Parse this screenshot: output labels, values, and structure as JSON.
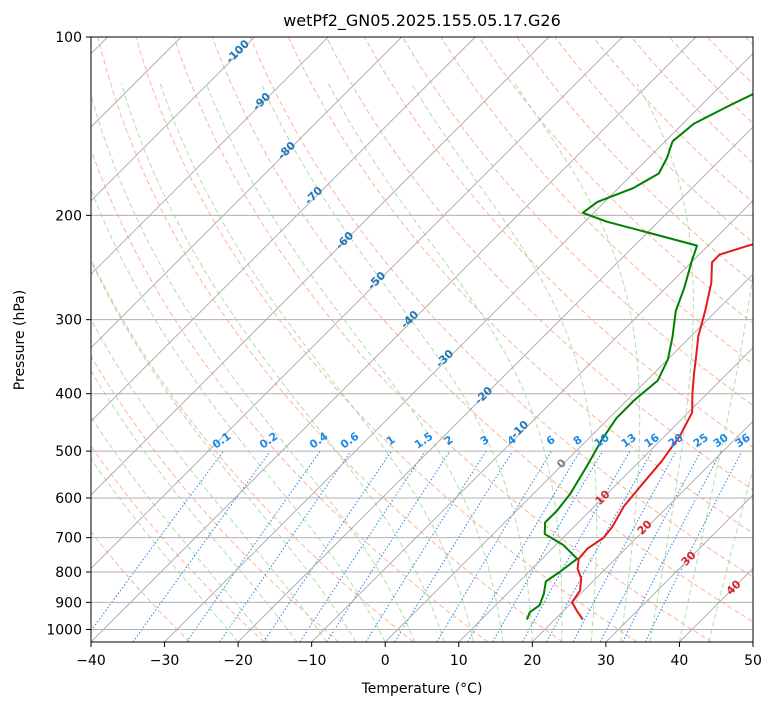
{
  "chart_data": {
    "type": "line",
    "title": "wetPf2_GN05.2025.155.05.17.G26",
    "xlabel": "Temperature (°C)",
    "ylabel": "Pressure (hPa)",
    "xlim": [
      -40,
      50
    ],
    "ylim": [
      1050,
      100
    ],
    "yscale": "log",
    "grid": true,
    "x_ticks": [
      -40,
      -30,
      -20,
      -10,
      0,
      10,
      20,
      30,
      40,
      50
    ],
    "y_ticks": [
      100,
      200,
      300,
      400,
      500,
      600,
      700,
      800,
      900,
      1000
    ],
    "series": [
      {
        "kind": "temperature",
        "color": "#e41a1c",
        "points": [
          {
            "p": 962,
            "t": 23.8
          },
          {
            "p": 930,
            "t": 21.8
          },
          {
            "p": 900,
            "t": 20.0
          },
          {
            "p": 860,
            "t": 19.5
          },
          {
            "p": 820,
            "t": 18.0
          },
          {
            "p": 790,
            "t": 16.2
          },
          {
            "p": 760,
            "t": 15.0
          },
          {
            "p": 730,
            "t": 14.8
          },
          {
            "p": 700,
            "t": 15.5
          },
          {
            "p": 670,
            "t": 15.2
          },
          {
            "p": 620,
            "t": 14.0
          },
          {
            "p": 570,
            "t": 13.5
          },
          {
            "p": 520,
            "t": 13.0
          },
          {
            "p": 470,
            "t": 12.0
          },
          {
            "p": 430,
            "t": 10.5
          },
          {
            "p": 400,
            "t": 8.0
          },
          {
            "p": 370,
            "t": 5.5
          },
          {
            "p": 350,
            "t": 3.8
          },
          {
            "p": 320,
            "t": 1.0
          },
          {
            "p": 290,
            "t": -1.5
          },
          {
            "p": 260,
            "t": -4.5
          },
          {
            "p": 240,
            "t": -7.2
          },
          {
            "p": 233,
            "t": -7.2
          },
          {
            "p": 225,
            "t": -4.5
          },
          {
            "p": 215,
            "t": -0.5
          },
          {
            "p": 205,
            "t": 3.5
          },
          {
            "p": 195,
            "t": 7.0
          },
          {
            "p": 180,
            "t": 9.5
          },
          {
            "p": 165,
            "t": 11.5
          },
          {
            "p": 150,
            "t": 14.5
          },
          {
            "p": 135,
            "t": 17.0
          },
          {
            "p": 120,
            "t": 19.0
          },
          {
            "p": 110,
            "t": 21.5
          },
          {
            "p": 100,
            "t": 25.0
          }
        ]
      },
      {
        "kind": "dewpoint",
        "color": "#008000",
        "points": [
          {
            "p": 962,
            "t": 16.2
          },
          {
            "p": 935,
            "t": 15.6
          },
          {
            "p": 910,
            "t": 16.0
          },
          {
            "p": 870,
            "t": 15.0
          },
          {
            "p": 830,
            "t": 13.6
          },
          {
            "p": 800,
            "t": 14.2
          },
          {
            "p": 760,
            "t": 14.8
          },
          {
            "p": 720,
            "t": 11.0
          },
          {
            "p": 690,
            "t": 7.0
          },
          {
            "p": 660,
            "t": 5.5
          },
          {
            "p": 630,
            "t": 5.5
          },
          {
            "p": 590,
            "t": 5.0
          },
          {
            "p": 530,
            "t": 3.5
          },
          {
            "p": 480,
            "t": 2.0
          },
          {
            "p": 440,
            "t": 1.0
          },
          {
            "p": 410,
            "t": 1.0
          },
          {
            "p": 380,
            "t": 1.5
          },
          {
            "p": 350,
            "t": 0.0
          },
          {
            "p": 320,
            "t": -2.5
          },
          {
            "p": 290,
            "t": -5.5
          },
          {
            "p": 265,
            "t": -7.5
          },
          {
            "p": 240,
            "t": -10.0
          },
          {
            "p": 225,
            "t": -11.5
          },
          {
            "p": 215,
            "t": -19.0
          },
          {
            "p": 205,
            "t": -27.0
          },
          {
            "p": 198,
            "t": -31.5
          },
          {
            "p": 190,
            "t": -31.0
          },
          {
            "p": 180,
            "t": -28.0
          },
          {
            "p": 170,
            "t": -26.5
          },
          {
            "p": 160,
            "t": -27.5
          },
          {
            "p": 150,
            "t": -29.0
          },
          {
            "p": 140,
            "t": -28.5
          },
          {
            "p": 130,
            "t": -26.0
          },
          {
            "p": 120,
            "t": -23.0
          },
          {
            "p": 110,
            "t": -20.0
          },
          {
            "p": 100,
            "t": -17.5
          }
        ]
      }
    ],
    "isotherm_labels": [
      "-100",
      "-90",
      "-80",
      "-70",
      "-60",
      "-50",
      "-40",
      "-30",
      "-20",
      "-10"
    ],
    "isotherm_label_color": "#1f77b4",
    "mixing_ratio_labels": [
      "0.1",
      "0.2",
      "0.4",
      "0.6",
      "1",
      "1.5",
      "2",
      "3",
      "4",
      "6",
      "8",
      "10",
      "13",
      "16",
      "20",
      "25",
      "30",
      "36"
    ],
    "mixing_ratio_values": [
      0.1,
      0.2,
      0.4,
      0.6,
      1,
      1.5,
      2,
      3,
      4,
      6,
      8,
      10,
      13,
      16,
      20,
      25,
      30,
      36
    ],
    "mixing_ratio_color": "#1e88e5",
    "isotherm_warm_labels": [
      "0",
      "10",
      "20",
      "30",
      "40"
    ],
    "isotherm_warm_colors": [
      "#7f7f7f",
      "#d62728",
      "#d62728",
      "#d62728",
      "#d62728"
    ],
    "colors": {
      "grid": "#b0b0b0",
      "dry_adiabat": "#fca082",
      "moist_adiabat": "#9fd49a",
      "mixing_ratio": "#1e88e5",
      "background_curve": "#d2b48c"
    }
  }
}
